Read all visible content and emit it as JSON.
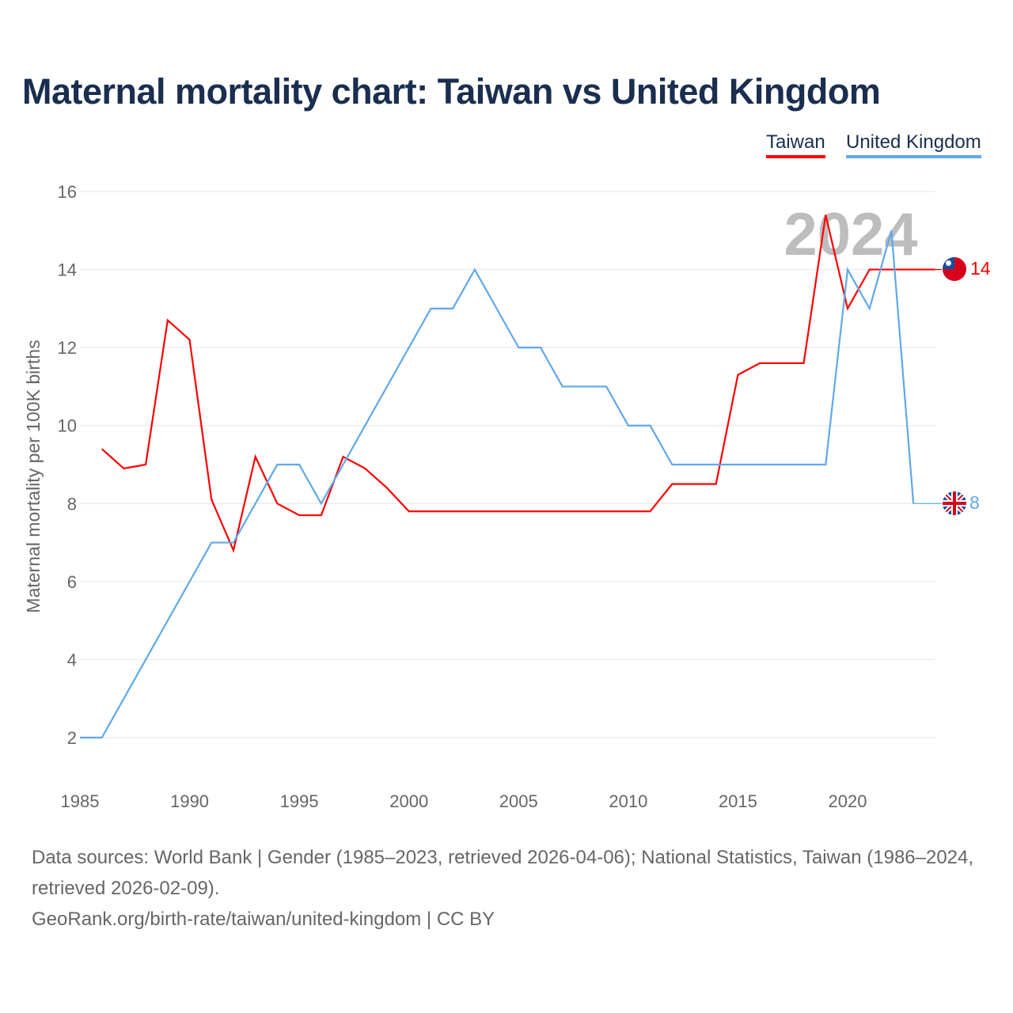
{
  "chart_data": {
    "type": "line",
    "title": "Maternal mortality chart: Taiwan vs United Kingdom",
    "xlabel": "",
    "ylabel": "Maternal mortality per 100K births",
    "xlim": [
      1985,
      2024
    ],
    "ylim": [
      2,
      16
    ],
    "x_ticks": [
      "1985",
      "1990",
      "1995",
      "2000",
      "2005",
      "2010",
      "2015",
      "2020"
    ],
    "y_ticks": [
      "2",
      "4",
      "6",
      "8",
      "10",
      "12",
      "14",
      "16"
    ],
    "grid": true,
    "legend_position": "top-right",
    "year_watermark": "2024",
    "series": [
      {
        "name": "Taiwan",
        "color": "#ff0000",
        "end_label": "14",
        "x": [
          1986,
          1987,
          1988,
          1989,
          1990,
          1991,
          1992,
          1993,
          1994,
          1995,
          1996,
          1997,
          1998,
          1999,
          2000,
          2001,
          2002,
          2003,
          2004,
          2005,
          2006,
          2007,
          2008,
          2009,
          2010,
          2011,
          2012,
          2013,
          2014,
          2015,
          2016,
          2017,
          2018,
          2019,
          2020,
          2021,
          2022,
          2023,
          2024
        ],
        "values": [
          9.4,
          8.9,
          9.0,
          12.7,
          12.2,
          8.1,
          6.8,
          9.2,
          8.0,
          7.7,
          7.7,
          9.2,
          8.9,
          8.4,
          7.8,
          7.8,
          7.8,
          7.8,
          7.8,
          7.8,
          7.8,
          7.8,
          7.8,
          7.8,
          7.8,
          7.8,
          8.5,
          8.5,
          8.5,
          11.3,
          11.6,
          11.6,
          11.6,
          15.4,
          13.0,
          14.0,
          14.0,
          14.0,
          14.0
        ]
      },
      {
        "name": "United Kingdom",
        "color": "#5fa8ea",
        "end_label": "8",
        "x": [
          1985,
          1986,
          1987,
          1988,
          1989,
          1990,
          1991,
          1992,
          1993,
          1994,
          1995,
          1996,
          1997,
          1998,
          1999,
          2000,
          2001,
          2002,
          2003,
          2004,
          2005,
          2006,
          2007,
          2008,
          2009,
          2010,
          2011,
          2012,
          2013,
          2014,
          2015,
          2016,
          2017,
          2018,
          2019,
          2020,
          2021,
          2022,
          2023
        ],
        "values": [
          2,
          2,
          3,
          4,
          5,
          6,
          7,
          7,
          8,
          9,
          9,
          8,
          9,
          10,
          11,
          12,
          13,
          13,
          14,
          13,
          12,
          12,
          11,
          11,
          11,
          10,
          10,
          9,
          9,
          9,
          9,
          9,
          9,
          9,
          9,
          14,
          13,
          15,
          8
        ]
      }
    ]
  },
  "legend": {
    "taiwan": "Taiwan",
    "uk": "United Kingdom"
  },
  "footer": {
    "sources": "Data sources: World Bank | Gender (1985–2023, retrieved 2026-04-06); National Statistics, Taiwan (1986–2024, retrieved 2026-02-09).",
    "credit": "GeoRank.org/birth-rate/taiwan/united-kingdom | CC BY"
  }
}
